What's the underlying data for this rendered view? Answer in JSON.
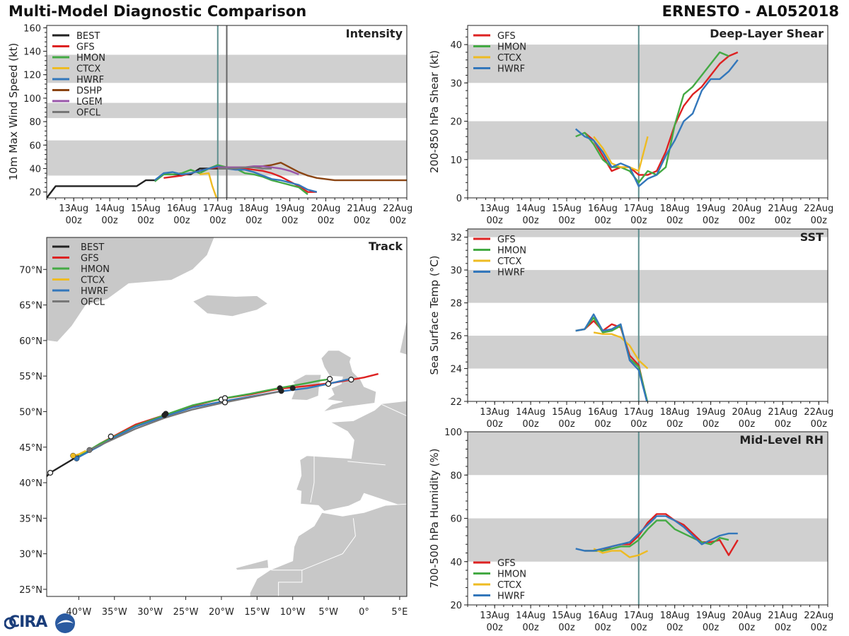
{
  "header": {
    "title": "Multi-Model Diagnostic Comparison",
    "storm": "ERNESTO - AL052018"
  },
  "logo": {
    "text": "CIRA"
  },
  "colors": {
    "BEST": "#222222",
    "GFS": "#dd2222",
    "HMON": "#44aa44",
    "CTCX": "#eebb22",
    "HWRF": "#3377bb",
    "DSHP": "#8b4513",
    "LGEM": "#9955aa",
    "OFCL": "#777777"
  },
  "time_ticks": {
    "days": [
      "13Aug",
      "14Aug",
      "15Aug",
      "16Aug",
      "17Aug",
      "18Aug",
      "19Aug",
      "20Aug",
      "21Aug",
      "22Aug"
    ],
    "hour": "00z"
  },
  "chart_data": [
    {
      "id": "intensity",
      "type": "line",
      "title": "Intensity",
      "ylabel": "10m Max Wind Speed (kt)",
      "xlim": [
        12.25,
        22.25
      ],
      "ylim": [
        15,
        162
      ],
      "yticks": [
        20,
        40,
        60,
        80,
        100,
        120,
        140,
        160
      ],
      "bands": [
        [
          34,
          64
        ],
        [
          83,
          96
        ],
        [
          113,
          137
        ]
      ],
      "vlines": [
        {
          "x": 17.0,
          "color": "#5f8f8f"
        },
        {
          "x": 17.25,
          "color": "#666666"
        }
      ],
      "legend": [
        "BEST",
        "GFS",
        "HMON",
        "CTCX",
        "HWRF",
        "DSHP",
        "LGEM",
        "OFCL"
      ],
      "series": [
        {
          "name": "BEST",
          "x": [
            12.25,
            12.5,
            12.75,
            13,
            13.25,
            13.5,
            13.75,
            14,
            14.25,
            14.5,
            14.75,
            15,
            15.25,
            15.5,
            15.75,
            16,
            16.25,
            16.5,
            16.75,
            17,
            17.25
          ],
          "y": [
            15,
            25,
            25,
            25,
            25,
            25,
            25,
            25,
            25,
            25,
            25,
            30,
            30,
            35,
            35,
            35,
            35,
            40,
            40,
            40,
            40
          ]
        },
        {
          "name": "GFS",
          "x": [
            15.5,
            16,
            16.25,
            16.5,
            16.75,
            17,
            17.25,
            17.5,
            17.75,
            18,
            18.25,
            18.5,
            18.75,
            19,
            19.25,
            19.5,
            19.75
          ],
          "y": [
            32,
            34,
            36,
            38,
            40,
            41,
            41,
            40,
            40,
            39,
            38,
            36,
            33,
            29,
            25,
            20,
            20
          ]
        },
        {
          "name": "HMON",
          "x": [
            15.25,
            15.5,
            15.75,
            16,
            16.25,
            16.5,
            16.75,
            17,
            17.25,
            17.5,
            17.75,
            18,
            18.25,
            18.5,
            18.75,
            19,
            19.25,
            19.5
          ],
          "y": [
            29,
            35,
            35,
            36,
            39,
            36,
            40,
            43,
            41,
            40,
            36,
            35,
            33,
            30,
            28,
            26,
            24,
            18
          ]
        },
        {
          "name": "CTCX",
          "x": [
            16.5,
            16.75,
            16.85,
            17.0
          ],
          "y": [
            35,
            36,
            25,
            12
          ]
        },
        {
          "name": "HWRF",
          "x": [
            15.25,
            15.5,
            15.75,
            16,
            16.25,
            16.5,
            16.75,
            17,
            17.25,
            17.5,
            17.75,
            18,
            18.25,
            18.5,
            18.75,
            19,
            19.25,
            19.5,
            19.75
          ],
          "y": [
            30,
            36,
            37,
            35,
            36,
            38,
            40,
            42,
            40,
            39,
            39,
            37,
            34,
            31,
            30,
            28,
            26,
            22,
            20
          ]
        },
        {
          "name": "DSHP",
          "x": [
            17,
            17.25,
            17.5,
            17.75,
            18,
            18.25,
            18.5,
            18.75,
            19,
            19.25,
            19.5,
            19.75,
            20,
            20.25,
            20.5,
            21,
            21.5,
            22,
            22.25
          ],
          "y": [
            41,
            41,
            41,
            41,
            41,
            42,
            43,
            45,
            41,
            37,
            34,
            32,
            31,
            30,
            30,
            30,
            30,
            30,
            30
          ]
        },
        {
          "name": "LGEM",
          "x": [
            17,
            17.25,
            17.5,
            17.75,
            18,
            18.25,
            18.5,
            18.75,
            19,
            19.25
          ],
          "y": [
            41,
            41,
            41,
            41,
            42,
            42,
            41,
            40,
            38,
            35
          ]
        },
        {
          "name": "OFCL",
          "x": [
            17,
            17.25,
            17.5,
            17.75,
            18,
            18.25,
            18.5
          ],
          "y": [
            40,
            40,
            40,
            41,
            41,
            40,
            40
          ]
        }
      ]
    },
    {
      "id": "shear",
      "type": "line",
      "title": "Deep-Layer Shear",
      "ylabel": "200-850 hPa Shear (kt)",
      "xlim": [
        12.25,
        22.25
      ],
      "ylim": [
        0,
        45
      ],
      "yticks": [
        0,
        10,
        20,
        30,
        40
      ],
      "bands": [
        [
          10,
          20
        ],
        [
          30,
          40
        ]
      ],
      "vlines": [
        {
          "x": 17.0,
          "color": "#5f8f8f"
        }
      ],
      "legend": [
        "GFS",
        "HMON",
        "CTCX",
        "HWRF"
      ],
      "series": [
        {
          "name": "GFS",
          "x": [
            15.5,
            15.75,
            16,
            16.25,
            16.5,
            16.75,
            17,
            17.25,
            17.5,
            17.75,
            18,
            18.25,
            18.5,
            18.75,
            19,
            19.25,
            19.5,
            19.75
          ],
          "y": [
            17,
            15,
            11,
            7,
            8,
            8,
            6,
            6,
            7,
            12,
            19,
            24,
            27,
            29,
            32,
            35,
            37,
            38
          ]
        },
        {
          "name": "HMON",
          "x": [
            15.25,
            15.5,
            15.75,
            16,
            16.25,
            16.5,
            16.75,
            17,
            17.25,
            17.5,
            17.75,
            18,
            18.25,
            18.5,
            18.75,
            19,
            19.25,
            19.5
          ],
          "y": [
            16,
            17,
            14,
            10,
            8,
            8,
            7,
            4,
            7,
            6,
            8,
            19,
            27,
            29,
            32,
            35,
            38,
            37
          ]
        },
        {
          "name": "CTCX",
          "x": [
            15.75,
            16,
            16.25,
            16.5,
            16.75,
            17,
            17.25
          ],
          "y": [
            16,
            13,
            9,
            8,
            8,
            7,
            16
          ]
        },
        {
          "name": "HWRF",
          "x": [
            15.25,
            15.5,
            15.75,
            16,
            16.25,
            16.5,
            16.75,
            17,
            17.25,
            17.5,
            17.75,
            18,
            18.25,
            18.5,
            18.75,
            19,
            19.25,
            19.5,
            19.75
          ],
          "y": [
            18,
            16,
            15,
            12,
            8,
            9,
            8,
            3,
            5,
            6,
            11,
            15,
            20,
            22,
            28,
            31,
            31,
            33,
            36
          ]
        }
      ]
    },
    {
      "id": "sst",
      "type": "line",
      "title": "SST",
      "ylabel": "Sea Surface Temp (°C)",
      "xlim": [
        12.25,
        22.25
      ],
      "ylim": [
        22,
        32.5
      ],
      "yticks": [
        22,
        24,
        26,
        28,
        30,
        32
      ],
      "bands": [
        [
          24,
          26
        ],
        [
          28,
          30
        ],
        [
          32,
          32.5
        ]
      ],
      "vlines": [
        {
          "x": 17.0,
          "color": "#5f8f8f"
        }
      ],
      "legend": [
        "GFS",
        "HMON",
        "CTCX",
        "HWRF"
      ],
      "series": [
        {
          "name": "GFS",
          "x": [
            15.25,
            15.5,
            15.75,
            16,
            16.25,
            16.5,
            16.75,
            17,
            17.25
          ],
          "y": [
            26.3,
            26.4,
            26.9,
            26.3,
            26.7,
            26.5,
            24.8,
            24.2,
            21.8
          ]
        },
        {
          "name": "HMON",
          "x": [
            15.25,
            15.5,
            15.75,
            16,
            16.25,
            16.5,
            16.75,
            17,
            17.25
          ],
          "y": [
            26.3,
            26.4,
            27.1,
            26.2,
            26.3,
            26.6,
            24.6,
            24.1,
            21.9
          ]
        },
        {
          "name": "CTCX",
          "x": [
            15.75,
            16,
            16.25,
            16.5,
            16.75,
            17,
            17.25
          ],
          "y": [
            26.2,
            26.1,
            26.1,
            25.9,
            25.4,
            24.5,
            24.0
          ]
        },
        {
          "name": "HWRF",
          "x": [
            15.25,
            15.5,
            15.75,
            16,
            16.25,
            16.5,
            16.75,
            17,
            17.25
          ],
          "y": [
            26.3,
            26.4,
            27.3,
            26.3,
            26.4,
            26.7,
            24.5,
            23.9,
            21.8
          ]
        }
      ]
    },
    {
      "id": "rh",
      "type": "line",
      "title": "Mid-Level RH",
      "ylabel": "700-500 hPa Humidity (%)",
      "xlim": [
        12.25,
        22.25
      ],
      "ylim": [
        20,
        100
      ],
      "yticks": [
        20,
        40,
        60,
        80,
        100
      ],
      "bands": [
        [
          40,
          60
        ],
        [
          80,
          100
        ]
      ],
      "vlines": [
        {
          "x": 17.0,
          "color": "#5f8f8f"
        }
      ],
      "legend": [
        "GFS",
        "HMON",
        "CTCX",
        "HWRF"
      ],
      "series": [
        {
          "name": "GFS",
          "x": [
            15.5,
            15.75,
            16,
            16.25,
            16.5,
            16.75,
            17,
            17.25,
            17.5,
            17.75,
            18,
            18.25,
            18.5,
            18.75,
            19,
            19.25,
            19.5,
            19.75
          ],
          "y": [
            45,
            45,
            45,
            47,
            48,
            48,
            52,
            58,
            62,
            62,
            59,
            57,
            53,
            49,
            49,
            50,
            43,
            50
          ]
        },
        {
          "name": "HMON",
          "x": [
            15.5,
            15.75,
            16,
            16.25,
            16.5,
            16.75,
            17,
            17.25,
            17.5,
            17.75,
            18,
            18.25,
            18.5,
            18.75,
            19,
            19.25,
            19.5
          ],
          "y": [
            45,
            45,
            45,
            46,
            47,
            47,
            50,
            55,
            59,
            59,
            55,
            53,
            51,
            49,
            48,
            51,
            50
          ]
        },
        {
          "name": "CTCX",
          "x": [
            15.75,
            16,
            16.25,
            16.5,
            16.75,
            17,
            17.25
          ],
          "y": [
            46,
            44,
            45,
            45,
            42,
            43,
            45
          ]
        },
        {
          "name": "HWRF",
          "x": [
            15.25,
            15.5,
            15.75,
            16,
            16.25,
            16.5,
            16.75,
            17,
            17.25,
            17.5,
            17.75,
            18,
            18.25,
            18.5,
            18.75,
            19,
            19.25,
            19.5,
            19.75
          ],
          "y": [
            46,
            45,
            45,
            46,
            47,
            48,
            49,
            53,
            57,
            61,
            61,
            59,
            56,
            52,
            48,
            50,
            52,
            53,
            53
          ]
        }
      ]
    },
    {
      "id": "track",
      "type": "line",
      "title": "Track",
      "xlabel_ticks": [
        "40°W",
        "35°W",
        "30°W",
        "25°W",
        "20°W",
        "15°W",
        "10°W",
        "5°W",
        "0°",
        "5°E"
      ],
      "ylabel_ticks": [
        "25°N",
        "30°N",
        "35°N",
        "40°N",
        "45°N",
        "50°N",
        "55°N",
        "60°N",
        "65°N",
        "70°N"
      ],
      "lon_ticks": [
        -40,
        -35,
        -30,
        -25,
        -20,
        -15,
        -10,
        -5,
        0,
        5
      ],
      "lat_ticks": [
        25,
        30,
        35,
        40,
        45,
        50,
        55,
        60,
        65,
        70
      ],
      "xlim": [
        -44.5,
        6
      ],
      "ylim": [
        24,
        74.5
      ],
      "legend": [
        "BEST",
        "GFS",
        "HMON",
        "CTCX",
        "HWRF",
        "OFCL"
      ],
      "series": [
        {
          "name": "BEST",
          "lon": [
            -44.5,
            -44,
            -42.5,
            -41,
            -40
          ],
          "lat": [
            40.9,
            41.4,
            42.3,
            43.2,
            43.9
          ]
        },
        {
          "name": "GFS",
          "lon": [
            -40,
            -37,
            -35,
            -32,
            -28,
            -24,
            -20,
            -16,
            -12,
            -8,
            -4,
            0,
            2
          ],
          "lat": [
            43.6,
            45.5,
            46.6,
            48.2,
            49.5,
            50.8,
            51.8,
            52.4,
            53.2,
            53.6,
            54.1,
            54.8,
            55.3
          ]
        },
        {
          "name": "HMON",
          "lon": [
            -40,
            -37,
            -35,
            -32,
            -28,
            -24,
            -20,
            -16,
            -12,
            -8,
            -6,
            -4.5
          ],
          "lat": [
            43.7,
            45.5,
            46.5,
            48.0,
            49.5,
            50.9,
            51.8,
            52.5,
            53.3,
            54.0,
            54.4,
            54.6
          ]
        },
        {
          "name": "CTCX",
          "lon": [
            -41,
            -40,
            -39
          ],
          "lat": [
            43.7,
            44.0,
            44.5
          ]
        },
        {
          "name": "HWRF",
          "lon": [
            -40.4,
            -37,
            -35,
            -32,
            -28,
            -24,
            -20,
            -16,
            -12,
            -8,
            -5,
            -2
          ],
          "lat": [
            43.4,
            45.2,
            46.4,
            47.9,
            49.3,
            50.6,
            51.4,
            52.1,
            52.8,
            53.3,
            53.9,
            54.6
          ]
        },
        {
          "name": "OFCL",
          "lon": [
            -38.5,
            -35,
            -32,
            -28,
            -24,
            -20,
            -16,
            -12
          ],
          "lat": [
            44.6,
            46.2,
            47.6,
            49.1,
            50.3,
            51.2,
            52.0,
            52.8
          ]
        }
      ],
      "markers_open": [
        [
          -44,
          41.4
        ],
        [
          -35.5,
          46.5
        ],
        [
          -20,
          51.7
        ],
        [
          -19.5,
          51.9
        ],
        [
          -19.5,
          51.3
        ],
        [
          -5,
          53.9
        ],
        [
          -4.8,
          54.6
        ],
        [
          -1.8,
          54.5
        ]
      ],
      "markers_filled": [
        [
          -40.3,
          43.4,
          "HWRF"
        ],
        [
          -40.8,
          43.8,
          "CTCX"
        ],
        [
          -38.5,
          44.6,
          "OFCL"
        ],
        [
          -28,
          49.5,
          "BEST"
        ],
        [
          -27.8,
          49.7,
          "BEST"
        ],
        [
          -11.8,
          53.3,
          "BEST"
        ],
        [
          -11.6,
          52.9,
          "BEST"
        ],
        [
          -10,
          53.3,
          "BEST"
        ]
      ]
    }
  ]
}
